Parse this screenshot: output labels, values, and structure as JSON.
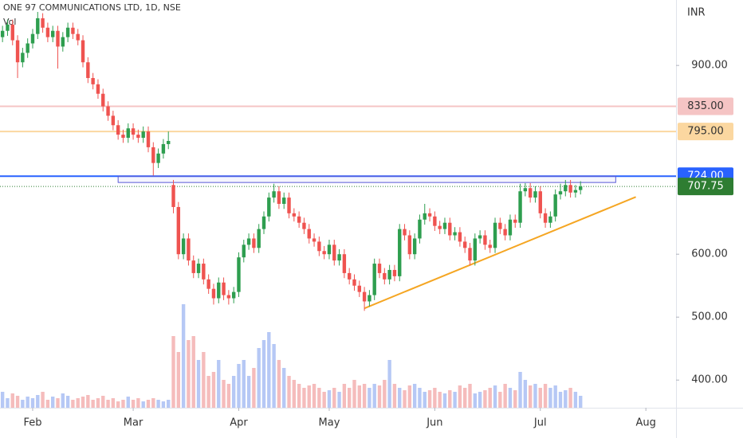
{
  "chart_data": {
    "type": "candlestick",
    "title": "ONE 97 COMMUNICATIONS LTD, 1D, NSE",
    "subtitle": "Vol",
    "currency": "INR",
    "xlim": [
      -0.5,
      134
    ],
    "xticks": [
      {
        "value": 6,
        "label": "Feb"
      },
      {
        "value": 26,
        "label": "Mar"
      },
      {
        "value": 47,
        "label": "Apr"
      },
      {
        "value": 65,
        "label": "May"
      },
      {
        "value": 86,
        "label": "Jun"
      },
      {
        "value": 107,
        "label": "Jul"
      },
      {
        "value": 128,
        "label": "Aug"
      }
    ],
    "ylim": [
      356,
      1004
    ],
    "yticks": [
      {
        "value": 400,
        "label": "400.00"
      },
      {
        "value": 500,
        "label": "500.00"
      },
      {
        "value": 600,
        "label": "600.00"
      },
      {
        "value": 900,
        "label": "900.00"
      }
    ],
    "grid": false,
    "up_color": "#2e9e4f",
    "down_color": "#ef5350",
    "series": [
      {
        "open": [
          945,
          955,
          965,
          940,
          905,
          920,
          935,
          950,
          975,
          960,
          945,
          955,
          930,
          945,
          960,
          950,
          940,
          905,
          880,
          870,
          855,
          835,
          820,
          805,
          790,
          785,
          800,
          790,
          785,
          795,
          770,
          745,
          760,
          775,
          710,
          675,
          600,
          625,
          590,
          570,
          585,
          560,
          545,
          530,
          555,
          535,
          530,
          540,
          595,
          615,
          625,
          610,
          640,
          660,
          690,
          700,
          680,
          690,
          665,
          660,
          650,
          640,
          625,
          620,
          605,
          600,
          615,
          590,
          600,
          570,
          560,
          550,
          540,
          525,
          535,
          585,
          570,
          560,
          575,
          565,
          640,
          630,
          600,
          625,
          655,
          665,
          660,
          645,
          640,
          650,
          630,
          635,
          620,
          610,
          590,
          625,
          630,
          615,
          610,
          650,
          640,
          630,
          655,
          650,
          700,
          705,
          690,
          700,
          665,
          650,
          660,
          695,
          700,
          710,
          698,
          702
        ],
        "high": [
          963,
          973,
          973,
          948,
          928,
          943,
          958,
          985,
          983,
          968,
          963,
          963,
          953,
          968,
          968,
          958,
          948,
          913,
          888,
          878,
          863,
          843,
          828,
          813,
          798,
          808,
          808,
          798,
          803,
          803,
          778,
          768,
          783,
          795,
          718,
          683,
          633,
          633,
          598,
          593,
          593,
          568,
          553,
          563,
          563,
          543,
          548,
          603,
          623,
          633,
          633,
          648,
          668,
          698,
          712,
          708,
          698,
          698,
          673,
          668,
          658,
          648,
          633,
          628,
          613,
          623,
          623,
          608,
          608,
          578,
          568,
          558,
          548,
          543,
          593,
          593,
          578,
          583,
          583,
          648,
          648,
          638,
          633,
          663,
          680,
          673,
          668,
          653,
          658,
          658,
          643,
          643,
          628,
          618,
          633,
          638,
          638,
          623,
          658,
          658,
          648,
          663,
          663,
          712,
          713,
          713,
          708,
          708,
          673,
          668,
          703,
          712,
          718,
          718,
          710,
          716
        ],
        "low": [
          937,
          947,
          932,
          880,
          897,
          912,
          927,
          942,
          952,
          937,
          937,
          895,
          922,
          937,
          942,
          932,
          897,
          872,
          862,
          847,
          827,
          812,
          797,
          782,
          777,
          777,
          782,
          777,
          777,
          762,
          725,
          737,
          752,
          767,
          665,
          592,
          592,
          582,
          562,
          562,
          552,
          537,
          520,
          522,
          527,
          520,
          522,
          532,
          587,
          607,
          602,
          602,
          632,
          652,
          682,
          672,
          672,
          657,
          652,
          642,
          632,
          617,
          612,
          597,
          592,
          592,
          582,
          582,
          562,
          552,
          542,
          532,
          510,
          517,
          527,
          562,
          552,
          552,
          557,
          557,
          622,
          592,
          592,
          617,
          647,
          652,
          637,
          632,
          632,
          622,
          622,
          612,
          602,
          582,
          582,
          617,
          607,
          602,
          602,
          632,
          622,
          622,
          642,
          642,
          692,
          682,
          682,
          657,
          642,
          642,
          652,
          687,
          692,
          690,
          690,
          695
        ],
        "close": [
          955,
          965,
          940,
          905,
          920,
          935,
          950,
          975,
          960,
          945,
          955,
          930,
          945,
          960,
          950,
          940,
          905,
          880,
          870,
          855,
          835,
          820,
          805,
          790,
          785,
          800,
          790,
          785,
          795,
          770,
          745,
          760,
          775,
          780,
          675,
          600,
          625,
          590,
          570,
          585,
          560,
          545,
          530,
          555,
          535,
          530,
          540,
          595,
          615,
          625,
          610,
          640,
          660,
          690,
          700,
          680,
          690,
          665,
          660,
          650,
          640,
          625,
          620,
          605,
          600,
          615,
          590,
          600,
          570,
          560,
          550,
          540,
          525,
          535,
          585,
          570,
          560,
          575,
          565,
          640,
          630,
          600,
          625,
          655,
          665,
          660,
          645,
          640,
          650,
          630,
          635,
          620,
          610,
          590,
          625,
          630,
          615,
          610,
          650,
          640,
          630,
          655,
          650,
          700,
          705,
          690,
          700,
          665,
          650,
          660,
          695,
          700,
          710,
          698,
          702,
          707.75
        ],
        "volume": [
          20,
          12,
          18,
          15,
          10,
          14,
          12,
          16,
          20,
          10,
          14,
          12,
          18,
          15,
          10,
          12,
          14,
          16,
          10,
          12,
          15,
          10,
          12,
          8,
          10,
          14,
          10,
          12,
          8,
          10,
          12,
          10,
          8,
          10,
          90,
          70,
          130,
          85,
          90,
          60,
          70,
          40,
          45,
          60,
          35,
          30,
          40,
          55,
          60,
          40,
          50,
          75,
          85,
          95,
          80,
          60,
          50,
          40,
          35,
          30,
          25,
          28,
          30,
          25,
          20,
          22,
          25,
          20,
          30,
          25,
          35,
          28,
          30,
          25,
          30,
          28,
          35,
          60,
          30,
          25,
          22,
          28,
          30,
          25,
          20,
          22,
          25,
          20,
          18,
          22,
          20,
          28,
          25,
          30,
          18,
          20,
          22,
          25,
          28,
          20,
          30,
          25,
          22,
          45,
          35,
          28,
          30,
          25,
          30,
          25,
          28,
          20,
          22,
          25,
          20,
          15
        ]
      }
    ],
    "levels": [
      {
        "value": 835,
        "label": "835.00",
        "color": "#f5c4c4",
        "text_color": "#333333"
      },
      {
        "value": 795,
        "label": "795.00",
        "color": "#fbd7a0",
        "text_color": "#333333"
      },
      {
        "value": 724,
        "label": "724.00",
        "color": "#2962ff",
        "text_color": "#ffffff"
      },
      {
        "value": 707.75,
        "label": "707.75",
        "color": "#2e7d32",
        "text_color": "#ffffff"
      }
    ],
    "rectangle": {
      "x": [
        23,
        122
      ],
      "y": [
        714,
        724
      ],
      "color": "#5b5bd6"
    },
    "trendline": {
      "x": [
        72,
        126
      ],
      "y": [
        514,
        691
      ],
      "color": "#f5a623"
    }
  }
}
